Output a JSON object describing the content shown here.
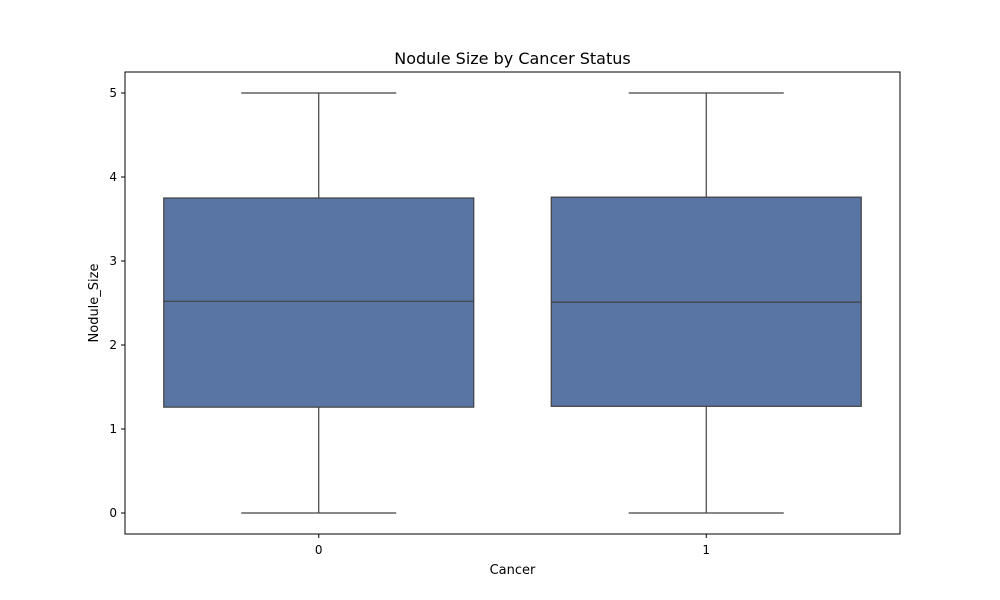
{
  "chart_data": {
    "type": "box",
    "title": "Nodule Size by Cancer Status",
    "xlabel": "Cancer",
    "ylabel": "Nodule_Size",
    "categories": [
      "0",
      "1"
    ],
    "ylim": [
      -0.25,
      5.25
    ],
    "yticks": [
      0,
      1,
      2,
      3,
      4,
      5
    ],
    "grid": false,
    "boxes": [
      {
        "category": "0",
        "min": 0,
        "q1": 1.26,
        "median": 2.52,
        "q3": 3.75,
        "max": 5
      },
      {
        "category": "1",
        "min": 0,
        "q1": 1.27,
        "median": 2.51,
        "q3": 3.76,
        "max": 5
      }
    ],
    "colors": {
      "box_fill": "#5875a4",
      "line": "#404040",
      "axis": "#000000"
    }
  }
}
